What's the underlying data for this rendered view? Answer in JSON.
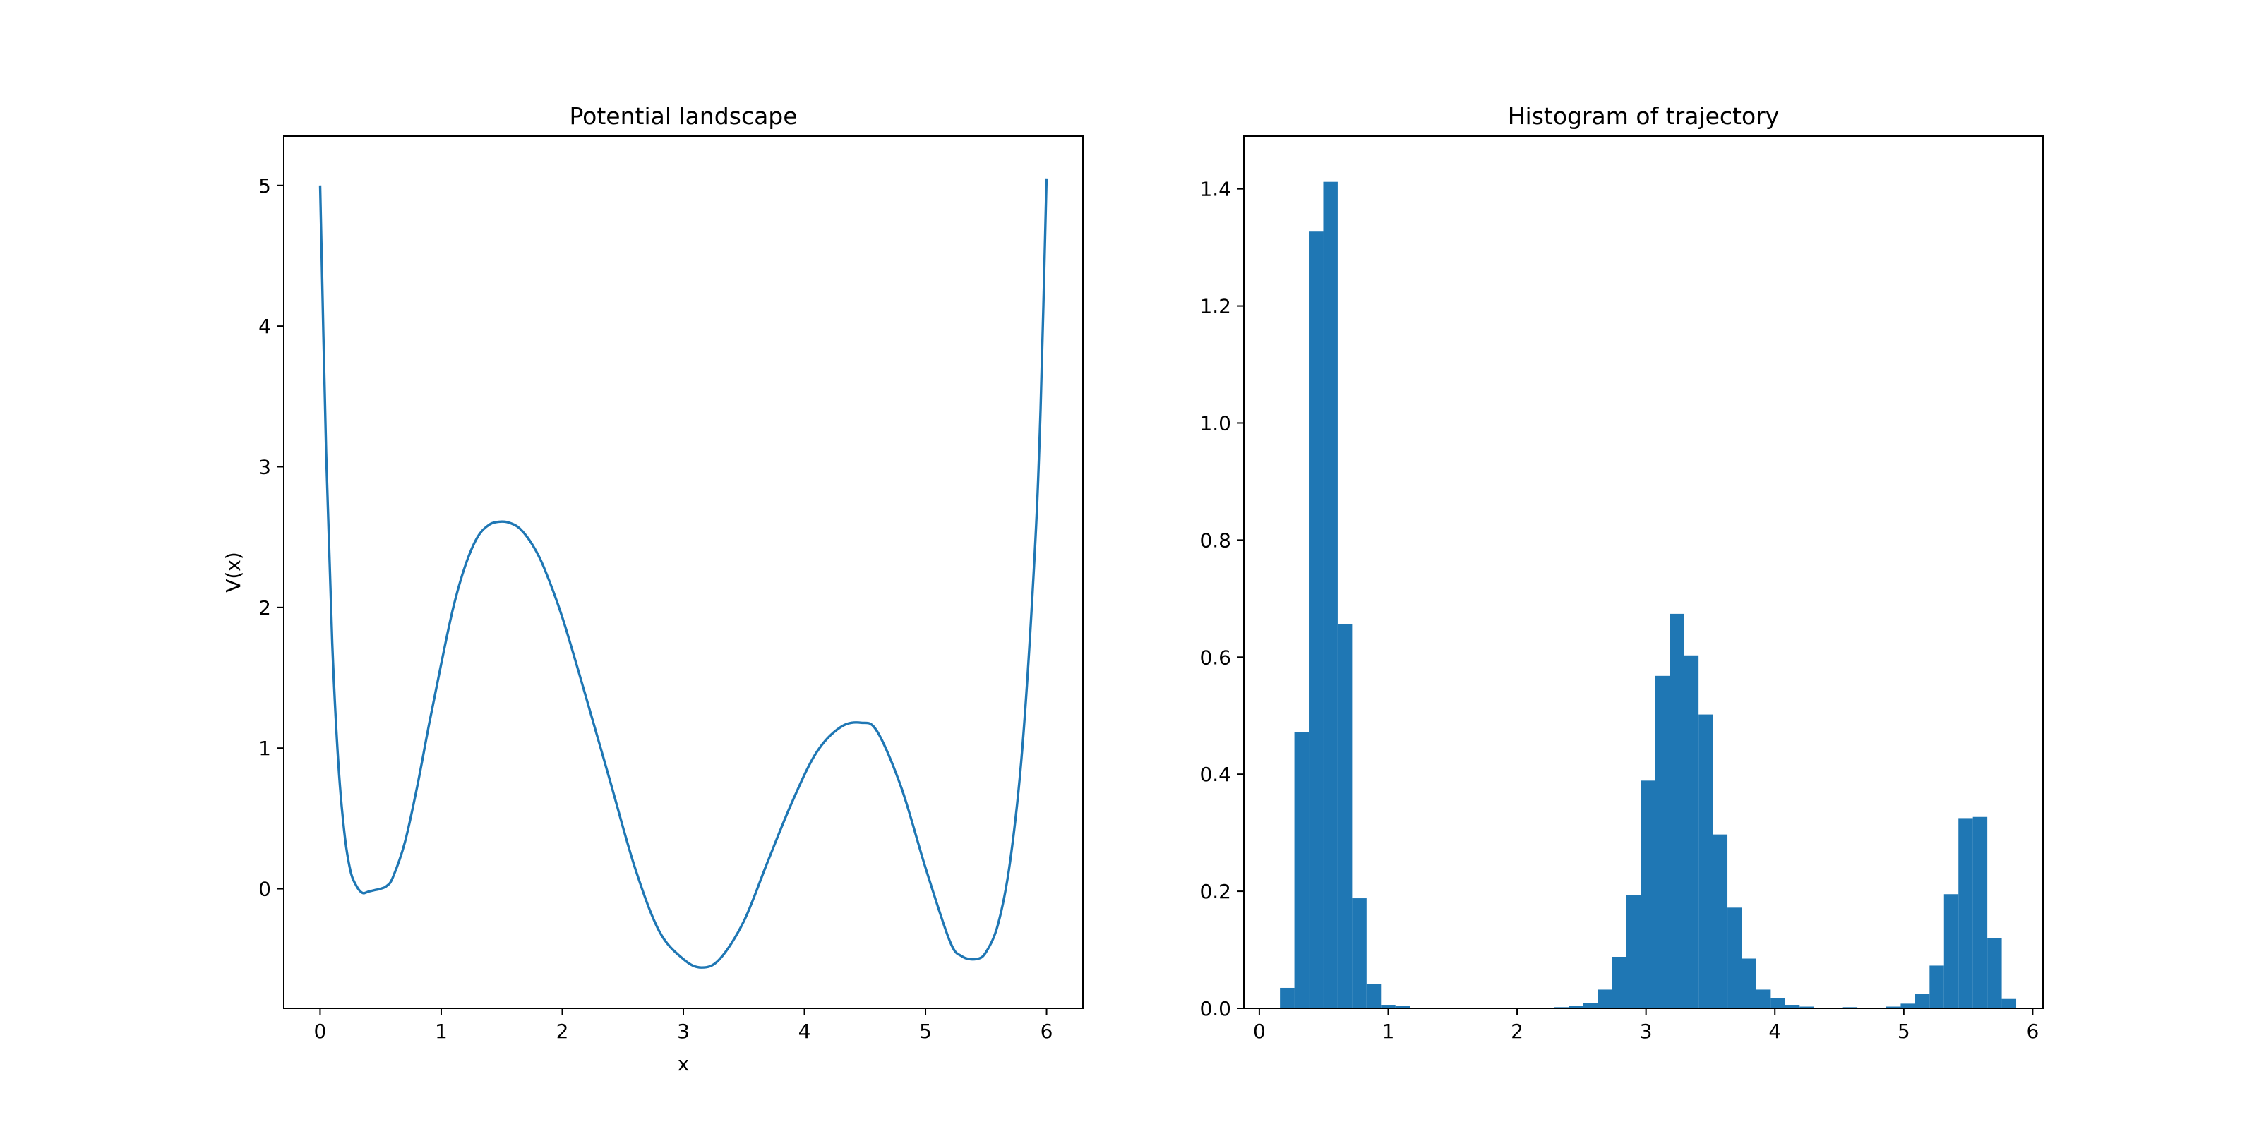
{
  "colors": {
    "series": "#1f77b4",
    "axes": "#000000",
    "background": "#ffffff"
  },
  "chart_data": [
    {
      "type": "line",
      "title": "Potential landscape",
      "xlabel": "x",
      "ylabel": "V(x)",
      "xlim": [
        -0.3,
        6.3
      ],
      "ylim": [
        -0.85,
        5.35
      ],
      "xticks": [
        0,
        1,
        2,
        3,
        4,
        5,
        6
      ],
      "yticks": [
        0,
        1,
        2,
        3,
        4,
        5
      ],
      "grid": false,
      "series": [
        {
          "x": [
            0.0,
            0.05,
            0.1,
            0.15,
            0.2,
            0.25,
            0.3,
            0.35,
            0.4,
            0.45,
            0.5,
            0.55,
            0.6,
            0.7,
            0.8,
            0.9,
            1.0,
            1.1,
            1.2,
            1.3,
            1.4,
            1.5,
            1.57,
            1.65,
            1.75,
            1.85,
            2.0,
            2.2,
            2.4,
            2.6,
            2.8,
            3.0,
            3.15,
            3.3,
            3.5,
            3.7,
            3.9,
            4.1,
            4.3,
            4.47,
            4.6,
            4.8,
            5.0,
            5.2,
            5.3,
            5.42,
            5.5,
            5.6,
            5.7,
            5.8,
            5.9,
            5.95,
            6.0
          ],
          "y": [
            5.0,
            3.1,
            1.75,
            0.9,
            0.4,
            0.13,
            0.02,
            -0.03,
            -0.02,
            -0.01,
            0.0,
            0.02,
            0.08,
            0.33,
            0.72,
            1.17,
            1.6,
            2.0,
            2.3,
            2.5,
            2.59,
            2.61,
            2.6,
            2.56,
            2.45,
            2.28,
            1.93,
            1.35,
            0.75,
            0.15,
            -0.3,
            -0.5,
            -0.56,
            -0.5,
            -0.23,
            0.2,
            0.62,
            0.97,
            1.15,
            1.18,
            1.12,
            0.72,
            0.15,
            -0.37,
            -0.48,
            -0.5,
            -0.45,
            -0.25,
            0.2,
            1.0,
            2.35,
            3.4,
            5.05
          ]
        }
      ]
    },
    {
      "type": "bar",
      "title": "Histogram of trajectory",
      "xlabel": "",
      "ylabel": "",
      "xlim": [
        -0.12,
        6.08
      ],
      "ylim": [
        0,
        1.49
      ],
      "xticks": [
        0,
        1,
        2,
        3,
        4,
        5,
        6
      ],
      "yticks": [
        0.0,
        0.2,
        0.4,
        0.6,
        0.8,
        1.0,
        1.2,
        1.4
      ],
      "ytick_labels": [
        "0.0",
        "0.2",
        "0.4",
        "0.6",
        "0.8",
        "1.0",
        "1.2",
        "1.4"
      ],
      "grid": false,
      "bin_start": 0.16,
      "bin_width": 0.112,
      "values": [
        0.035,
        0.472,
        1.327,
        1.412,
        0.657,
        0.188,
        0.042,
        0.006,
        0.004,
        0.001,
        0,
        0,
        0,
        0,
        0,
        0,
        0,
        0,
        0,
        0.002,
        0.004,
        0.009,
        0.032,
        0.088,
        0.193,
        0.389,
        0.568,
        0.674,
        0.603,
        0.502,
        0.297,
        0.172,
        0.085,
        0.032,
        0.017,
        0.006,
        0.003,
        0,
        0,
        0.002,
        0,
        0,
        0.003,
        0.008,
        0.025,
        0.073,
        0.195,
        0.325,
        0.327,
        0.12,
        0.016
      ]
    }
  ]
}
